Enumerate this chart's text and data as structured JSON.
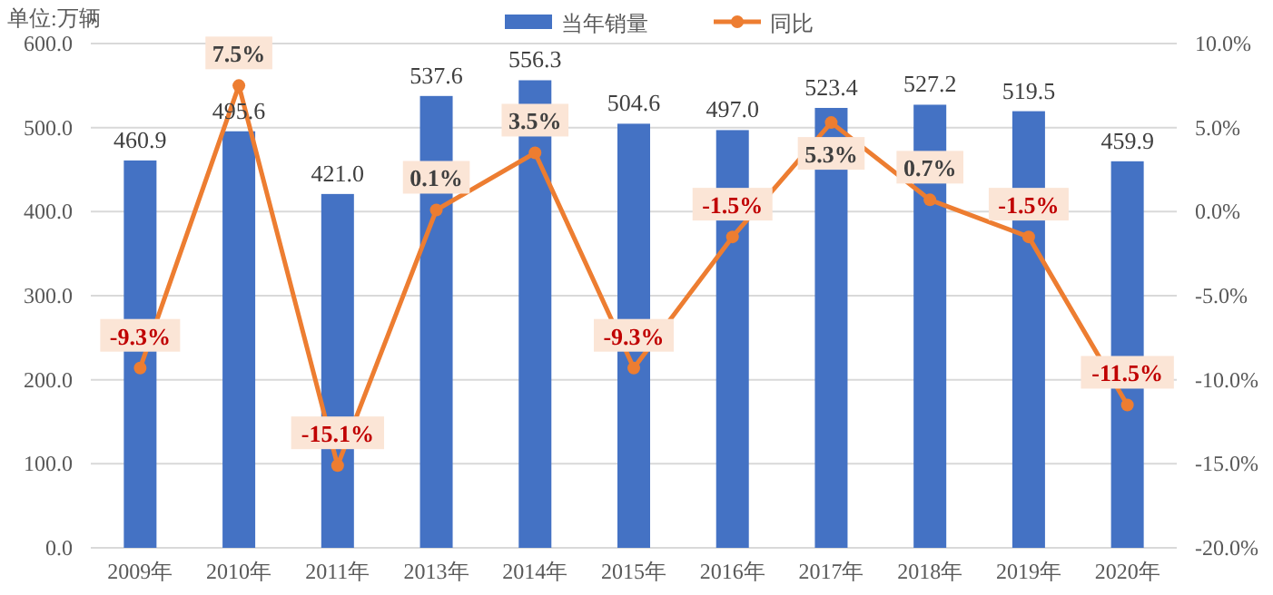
{
  "chart_data": {
    "type": "bar",
    "categories": [
      "2009年",
      "2010年",
      "2011年",
      "2013年",
      "2014年",
      "2015年",
      "2016年",
      "2017年",
      "2018年",
      "2019年",
      "2020年"
    ],
    "series": [
      {
        "name": "当年销量",
        "color": "#4472c4",
        "values": [
          460.9,
          495.6,
          421.0,
          537.6,
          556.3,
          504.6,
          497.0,
          523.4,
          527.2,
          519.5,
          459.9
        ],
        "value_labels": [
          "460.9",
          "495.6",
          "421.0",
          "537.6",
          "556.3",
          "504.6",
          "497.0",
          "523.4",
          "527.2",
          "519.5",
          "459.9"
        ]
      },
      {
        "name": "同比",
        "type": "line",
        "axis": "y2",
        "color": "#ed7d31",
        "marker": "circle",
        "values": [
          -9.3,
          7.5,
          -15.1,
          0.1,
          3.5,
          -9.3,
          -1.5,
          5.3,
          0.7,
          -1.5,
          -11.5
        ],
        "value_labels": [
          "-9.3%",
          "7.5%",
          "-15.1%",
          "0.1%",
          "3.5%",
          "-9.3%",
          "-1.5%",
          "5.3%",
          "0.7%",
          "-1.5%",
          "-11.5%"
        ]
      }
    ],
    "ylim": [
      0,
      600
    ],
    "yticks": [
      {
        "value": 0,
        "label": "0.0"
      },
      {
        "value": 100,
        "label": "100.0"
      },
      {
        "value": 200,
        "label": "200.0"
      },
      {
        "value": 300,
        "label": "300.0"
      },
      {
        "value": 400,
        "label": "400.0"
      },
      {
        "value": 500,
        "label": "500.0"
      },
      {
        "value": 600,
        "label": "600.0"
      }
    ],
    "y2lim": [
      -20,
      10
    ],
    "y2ticks": [
      {
        "value": -20,
        "label": "-20.0%"
      },
      {
        "value": -15,
        "label": "-15.0%"
      },
      {
        "value": -10,
        "label": "-10.0%"
      },
      {
        "value": -5,
        "label": "-5.0%"
      },
      {
        "value": 0,
        "label": "0.0%"
      },
      {
        "value": 5,
        "label": "5.0%"
      },
      {
        "value": 10,
        "label": "10.0%"
      }
    ],
    "grid": "y",
    "legend": "top",
    "annotations": [
      "单位:万辆"
    ]
  }
}
